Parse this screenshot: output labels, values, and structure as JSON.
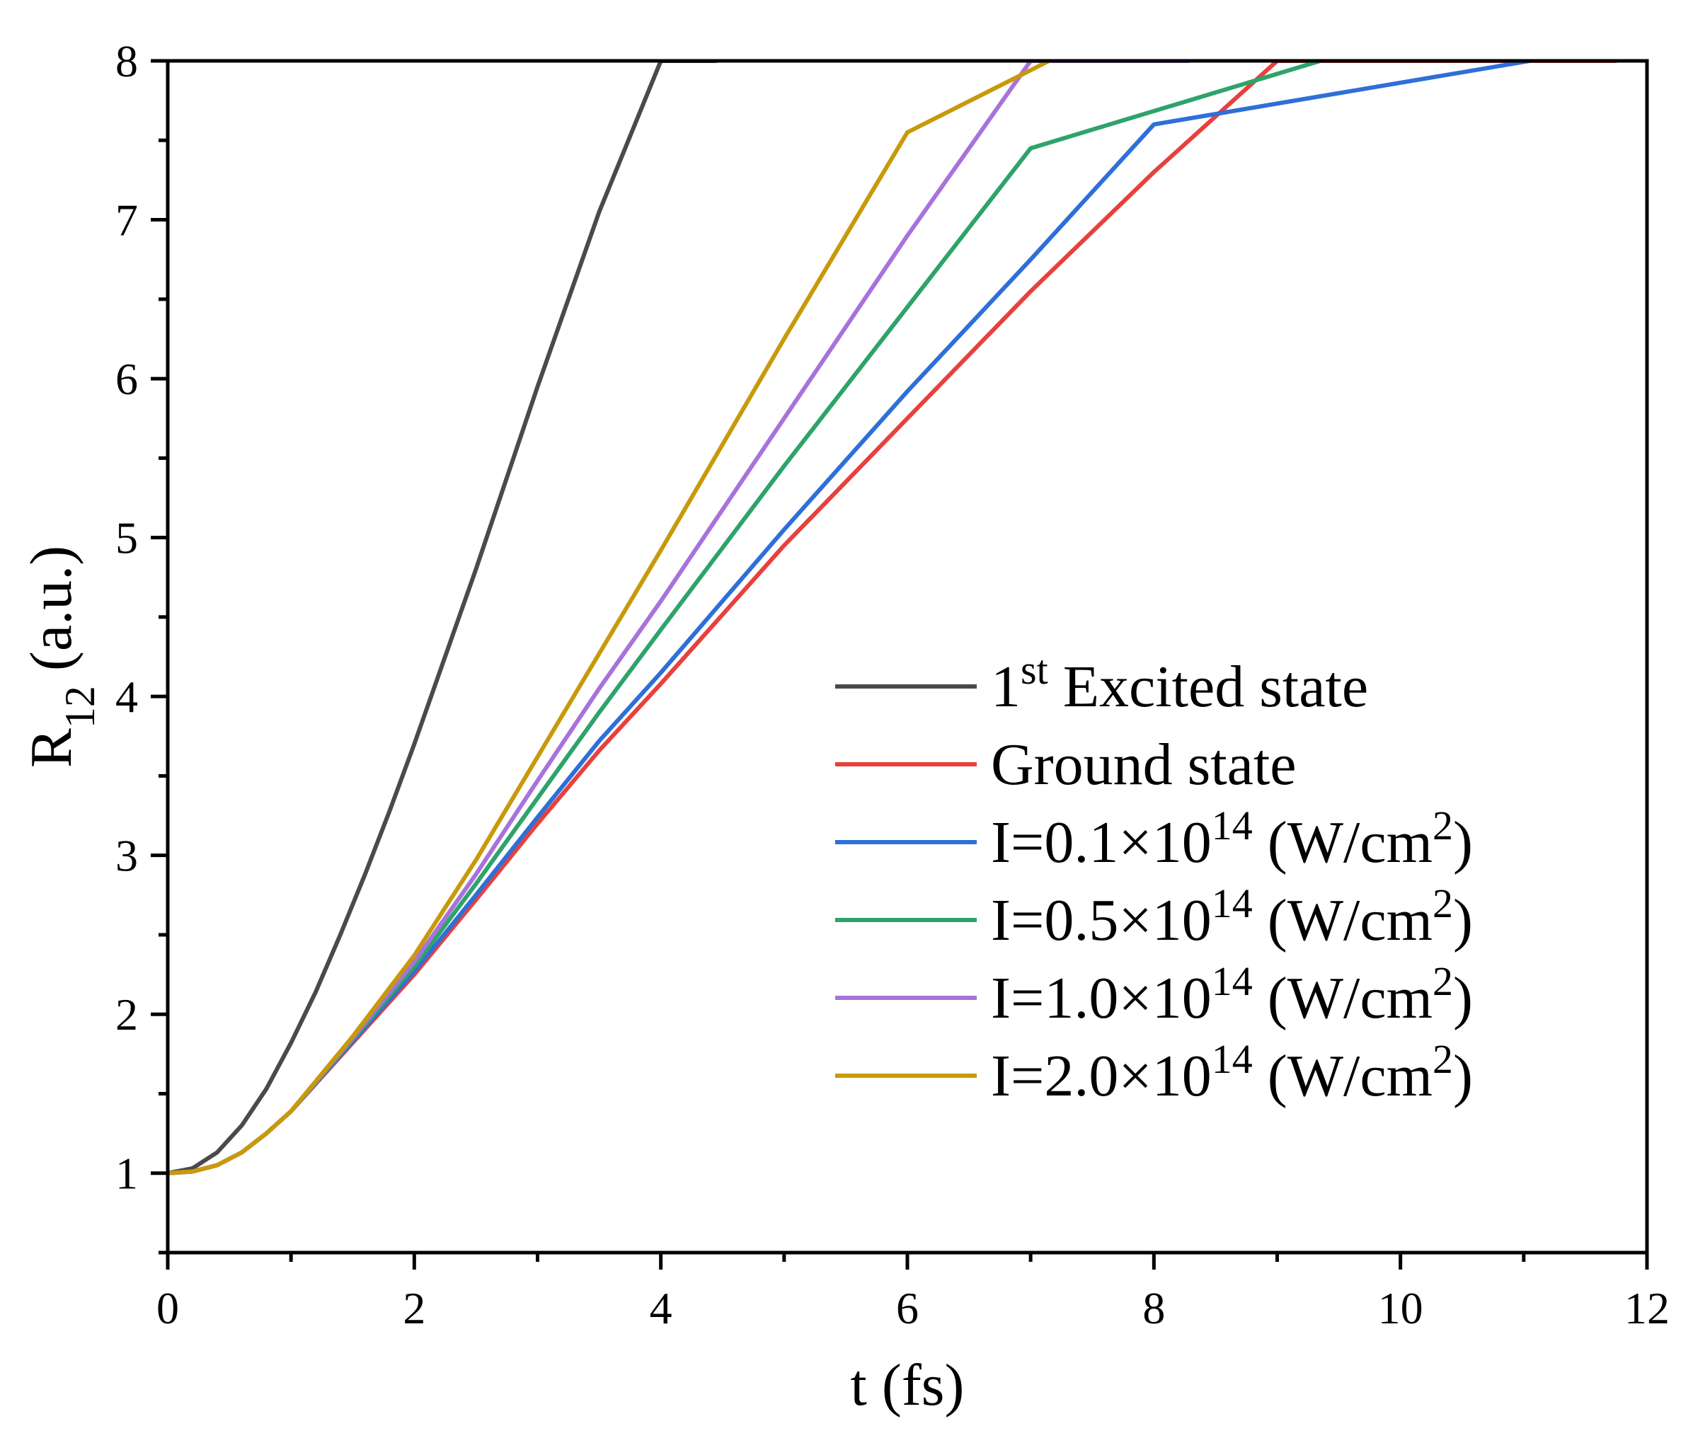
{
  "chart_data": {
    "type": "line",
    "xlabel": "t (fs)",
    "ylabel": {
      "main": "R",
      "sub": "12",
      "rest": " (a.u.)"
    },
    "xlim": [
      0,
      12
    ],
    "ylim": [
      0.5,
      8
    ],
    "xticks": [
      0,
      2,
      4,
      6,
      8,
      10,
      12
    ],
    "yticks": [
      1,
      2,
      3,
      4,
      5,
      6,
      7,
      8
    ],
    "x_minor_step": 1,
    "y_minor_step": 0.5,
    "grid": false,
    "legend_position": "center-right",
    "series": [
      {
        "name": "1st Excited state",
        "label": {
          "pre": "1",
          "sup": "st",
          "post": " Excited state"
        },
        "color": "#4a4a4a",
        "points": [
          [
            0,
            1.0
          ],
          [
            0.2,
            1.03
          ],
          [
            0.4,
            1.13
          ],
          [
            0.6,
            1.3
          ],
          [
            0.8,
            1.53
          ],
          [
            1.0,
            1.82
          ],
          [
            1.2,
            2.14
          ],
          [
            1.4,
            2.5
          ],
          [
            1.6,
            2.88
          ],
          [
            1.8,
            3.28
          ],
          [
            2.0,
            3.7
          ],
          [
            2.5,
            4.8
          ],
          [
            3.0,
            5.95
          ],
          [
            3.5,
            7.05
          ],
          [
            4.0,
            8.0
          ],
          [
            4.45,
            8.0
          ]
        ]
      },
      {
        "name": "Ground state",
        "label": {
          "pre": "Ground state",
          "sup": "",
          "post": ""
        },
        "color": "#e8403d",
        "points": [
          [
            0,
            1.0
          ],
          [
            0.2,
            1.01
          ],
          [
            0.4,
            1.05
          ],
          [
            0.6,
            1.13
          ],
          [
            0.8,
            1.25
          ],
          [
            1.0,
            1.39
          ],
          [
            1.5,
            1.82
          ],
          [
            2.0,
            2.25
          ],
          [
            2.5,
            2.72
          ],
          [
            3.0,
            3.2
          ],
          [
            3.5,
            3.66
          ],
          [
            4.0,
            4.08
          ],
          [
            5.0,
            4.95
          ],
          [
            6.0,
            5.75
          ],
          [
            7.0,
            6.55
          ],
          [
            8.0,
            7.3
          ],
          [
            9.0,
            8.0
          ],
          [
            10.0,
            8.0
          ],
          [
            11.0,
            8.0
          ],
          [
            11.75,
            8.0
          ]
        ]
      },
      {
        "name": "I=0.1×10^14 (W/cm^2)",
        "label": {
          "pre": "I=0.1×10",
          "sup": "14",
          "post": " (W/cm",
          "sup2": "2",
          "post2": ")"
        },
        "color": "#2e6fd8",
        "points": [
          [
            0,
            1.0
          ],
          [
            0.2,
            1.01
          ],
          [
            0.4,
            1.05
          ],
          [
            0.6,
            1.13
          ],
          [
            0.8,
            1.25
          ],
          [
            1.0,
            1.39
          ],
          [
            1.5,
            1.83
          ],
          [
            2.0,
            2.27
          ],
          [
            2.5,
            2.75
          ],
          [
            3.0,
            3.24
          ],
          [
            3.5,
            3.72
          ],
          [
            4.0,
            4.15
          ],
          [
            5.0,
            5.05
          ],
          [
            6.0,
            5.92
          ],
          [
            7.0,
            6.75
          ],
          [
            8.0,
            7.6
          ],
          [
            11.05,
            8.0
          ]
        ]
      },
      {
        "name": "I=0.5×10^14 (W/cm^2)",
        "label": {
          "pre": "I=0.5×10",
          "sup": "14",
          "post": " (W/cm",
          "sup2": "2",
          "post2": ")"
        },
        "color": "#2ea36a",
        "points": [
          [
            0,
            1.0
          ],
          [
            0.2,
            1.01
          ],
          [
            0.4,
            1.05
          ],
          [
            0.6,
            1.13
          ],
          [
            0.8,
            1.25
          ],
          [
            1.0,
            1.39
          ],
          [
            1.5,
            1.84
          ],
          [
            2.0,
            2.3
          ],
          [
            2.5,
            2.82
          ],
          [
            3.0,
            3.36
          ],
          [
            3.5,
            3.9
          ],
          [
            4.0,
            4.42
          ],
          [
            5.0,
            5.45
          ],
          [
            6.0,
            6.45
          ],
          [
            7.0,
            7.45
          ],
          [
            9.35,
            8.0
          ]
        ]
      },
      {
        "name": "I=1.0×10^14 (W/cm^2)",
        "label": {
          "pre": "I=1.0×10",
          "sup": "14",
          "post": " (W/cm",
          "sup2": "2",
          "post2": ")"
        },
        "color": "#a872db",
        "points": [
          [
            0,
            1.0
          ],
          [
            0.2,
            1.01
          ],
          [
            0.4,
            1.05
          ],
          [
            0.6,
            1.13
          ],
          [
            0.8,
            1.25
          ],
          [
            1.0,
            1.39
          ],
          [
            1.5,
            1.85
          ],
          [
            2.0,
            2.33
          ],
          [
            2.5,
            2.88
          ],
          [
            3.0,
            3.47
          ],
          [
            3.5,
            4.05
          ],
          [
            4.0,
            4.6
          ],
          [
            5.0,
            5.75
          ],
          [
            6.0,
            6.9
          ],
          [
            7.0,
            8.0
          ],
          [
            8.28,
            8.0
          ]
        ]
      },
      {
        "name": "I=2.0×10^14 (W/cm^2)",
        "label": {
          "pre": "I=2.0×10",
          "sup": "14",
          "post": " (W/cm",
          "sup2": "2",
          "post2": ")"
        },
        "color": "#c8990a",
        "points": [
          [
            0,
            1.0
          ],
          [
            0.2,
            1.01
          ],
          [
            0.4,
            1.05
          ],
          [
            0.6,
            1.13
          ],
          [
            0.8,
            1.25
          ],
          [
            1.0,
            1.39
          ],
          [
            1.5,
            1.86
          ],
          [
            2.0,
            2.37
          ],
          [
            2.5,
            2.97
          ],
          [
            3.0,
            3.62
          ],
          [
            3.5,
            4.27
          ],
          [
            4.0,
            4.92
          ],
          [
            5.0,
            6.25
          ],
          [
            6.0,
            7.55
          ],
          [
            7.15,
            8.0
          ]
        ]
      }
    ]
  }
}
